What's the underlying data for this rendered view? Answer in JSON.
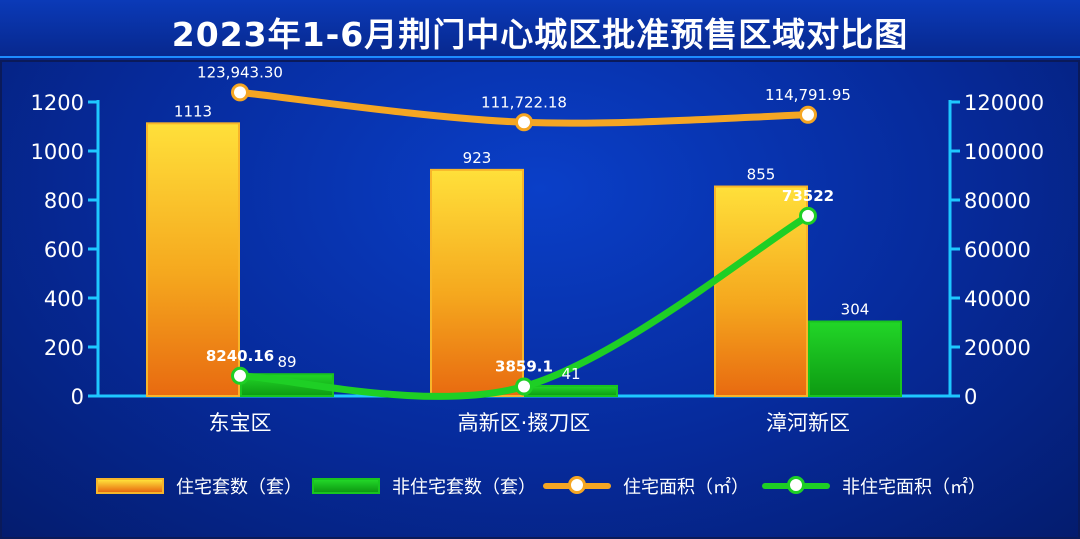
{
  "title": "2023年1-6月荆门中心城区批准预售区域对比图",
  "colors": {
    "residential_units": "#f5a623",
    "non_residential_units": "#16c01c",
    "residential_area": "#f5a623",
    "non_residential_area": "#1ecf25",
    "axis": "#1ec8ff"
  },
  "chart_data": {
    "type": "bar",
    "categories": [
      "东宝区",
      "高新区·掇刀区",
      "漳河新区"
    ],
    "y_left": {
      "ticks": [
        "0",
        "200",
        "400",
        "600",
        "800",
        "1000",
        "1200"
      ],
      "ylim": [
        0,
        1200
      ]
    },
    "y_right": {
      "ticks": [
        "0",
        "20000",
        "40000",
        "60000",
        "80000",
        "100000",
        "120000"
      ],
      "ylim": [
        0,
        120000
      ]
    },
    "series": [
      {
        "name": "住宅套数（套）",
        "kind": "bar",
        "axis": "left",
        "values": [
          1113,
          923,
          855
        ],
        "labels": [
          "1113",
          "923",
          "855"
        ]
      },
      {
        "name": "非住宅套数（套）",
        "kind": "bar",
        "axis": "left",
        "values": [
          89,
          41,
          304
        ],
        "labels": [
          "89",
          "41",
          "304"
        ]
      },
      {
        "name": "住宅面积（㎡）",
        "kind": "line",
        "axis": "right",
        "values": [
          123943.3,
          111722.18,
          114791.95
        ],
        "labels": [
          "123,943.30",
          "111,722.18",
          "114,791.95"
        ]
      },
      {
        "name": "非住宅面积（㎡）",
        "kind": "line",
        "axis": "right",
        "values": [
          8240.16,
          3859.1,
          73522
        ],
        "labels": [
          "8240.16",
          "3859.1",
          "73522"
        ]
      }
    ],
    "legend_position": "bottom",
    "grid": false
  }
}
